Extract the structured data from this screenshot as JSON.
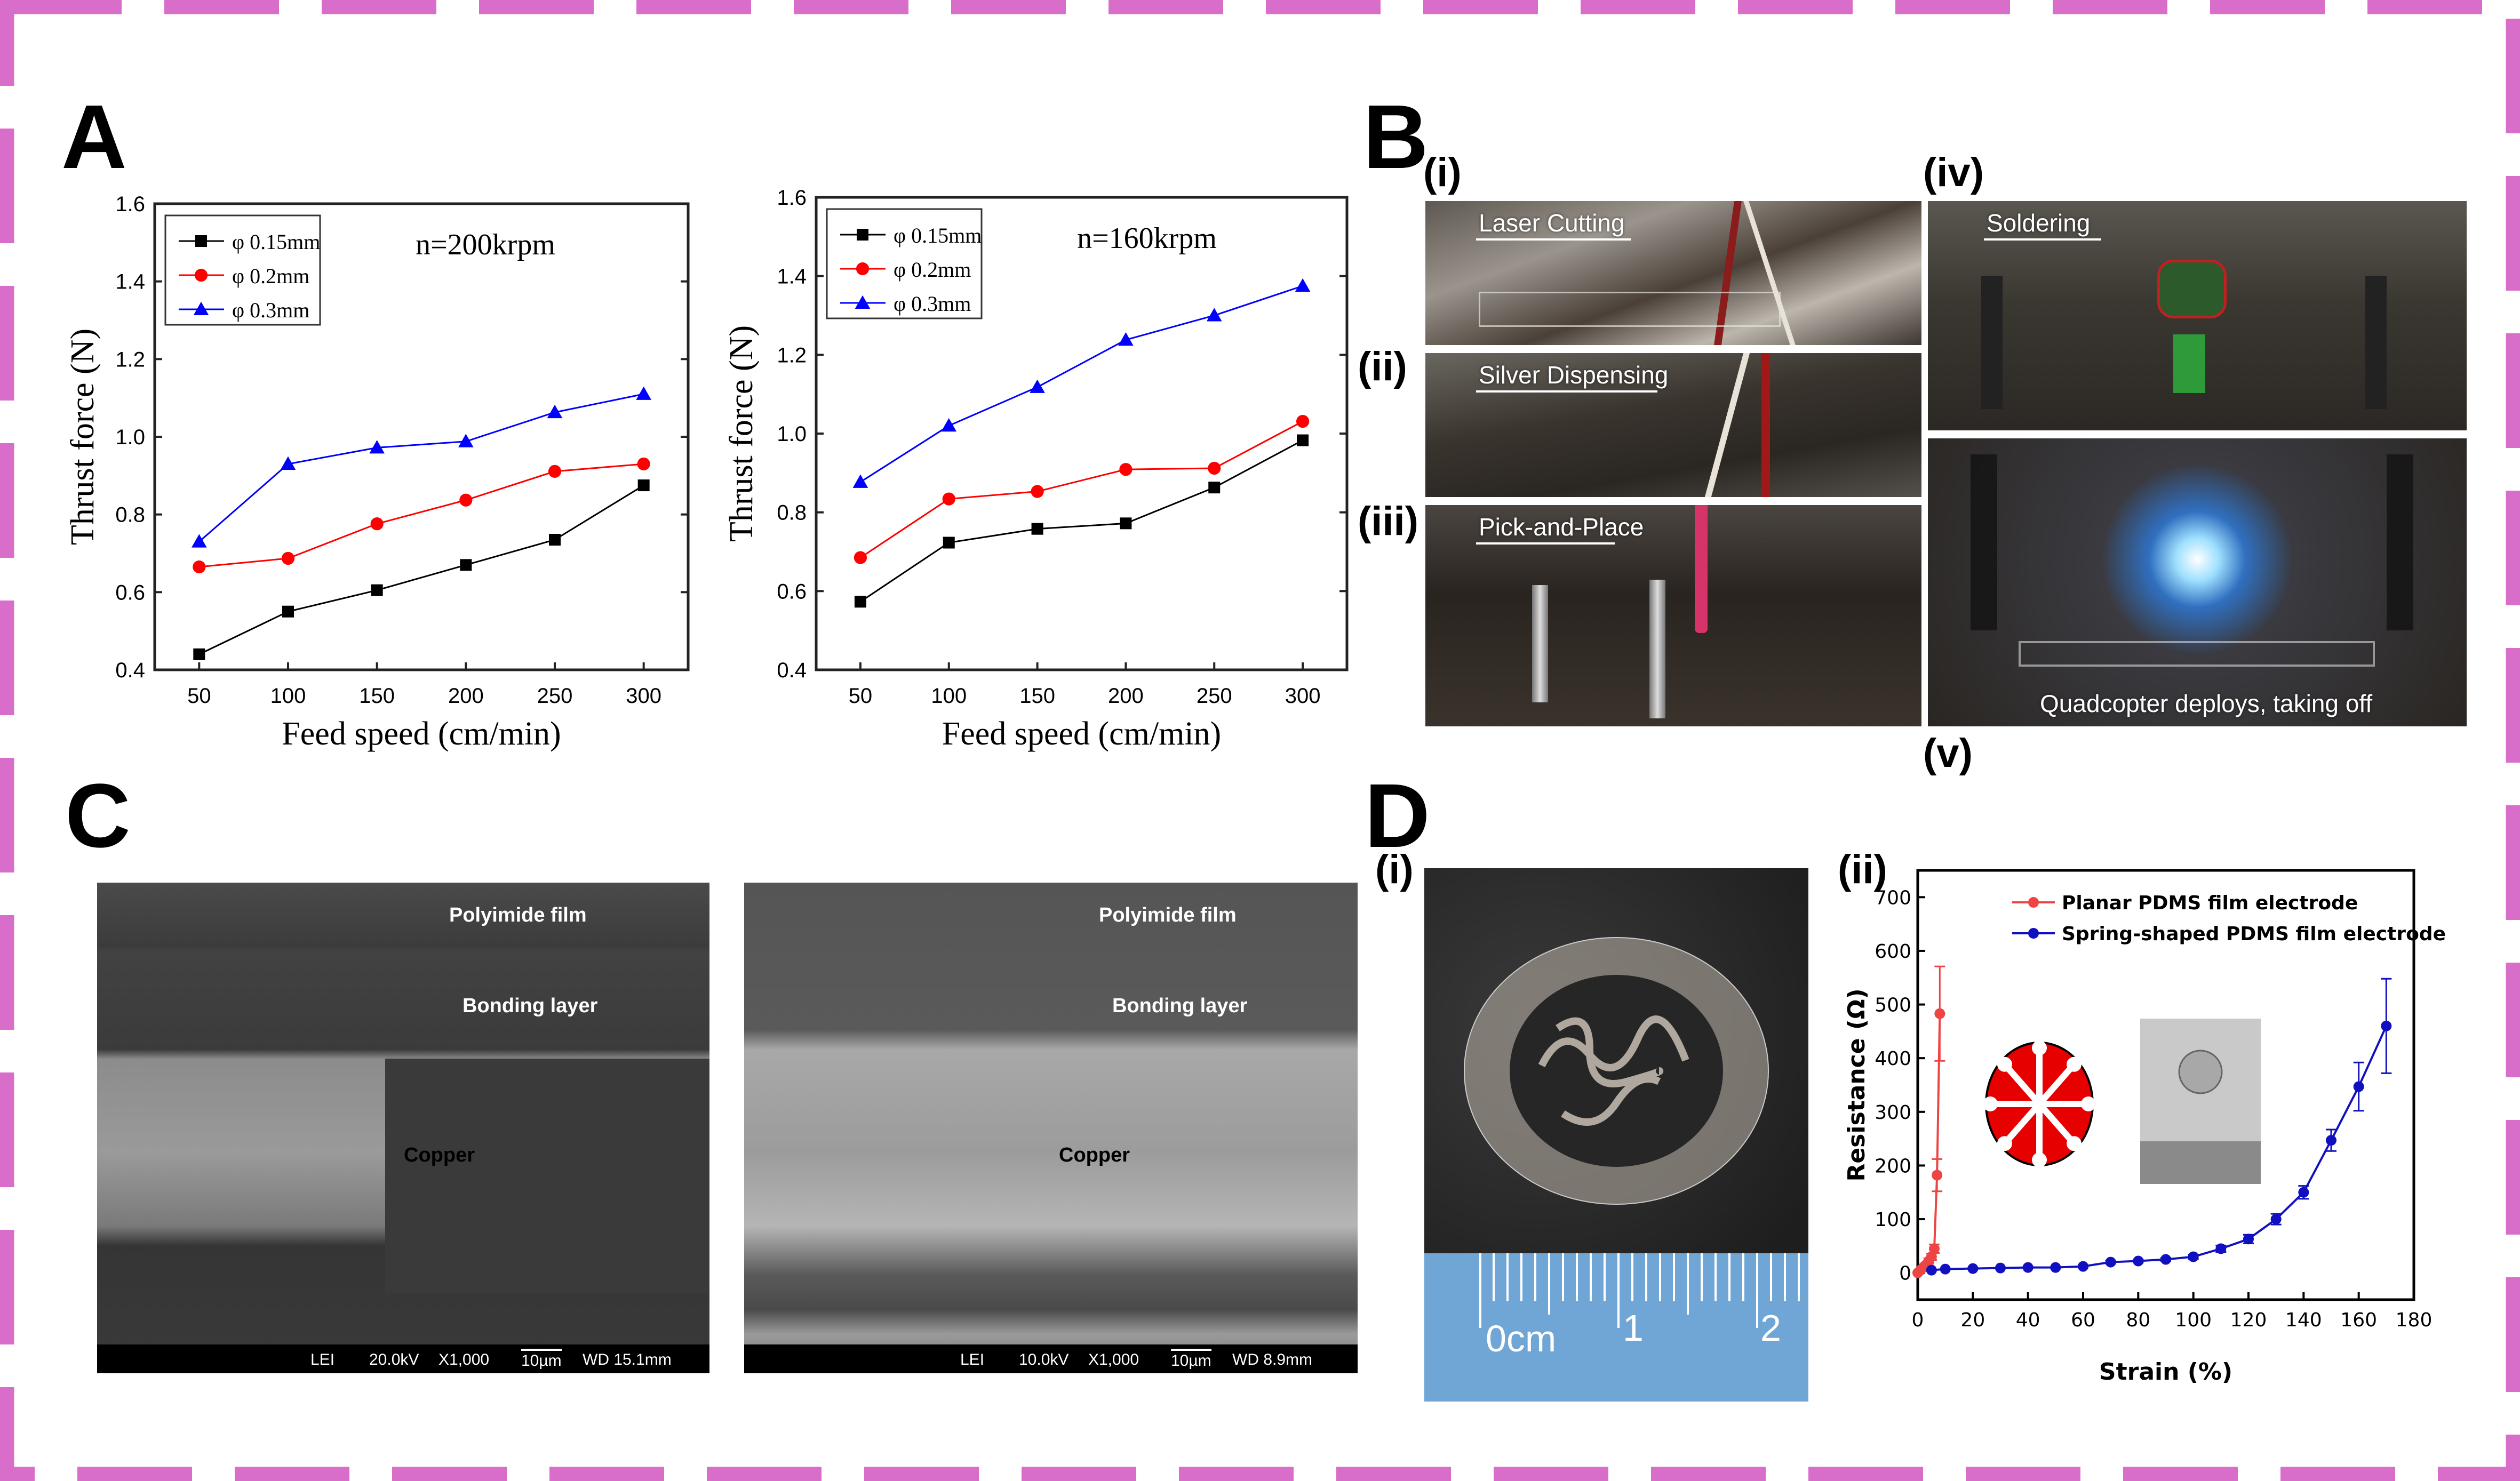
{
  "border": {
    "color": "#d86ec9"
  },
  "panels": {
    "A": {
      "letter": "A"
    },
    "B": {
      "letter": "B",
      "steps": [
        {
          "id": "i",
          "label": "(i)",
          "caption": "Laser Cutting"
        },
        {
          "id": "ii",
          "label": "(ii)",
          "caption": "Silver Dispensing"
        },
        {
          "id": "iii",
          "label": "(iii)",
          "caption": "Pick-and-Place"
        },
        {
          "id": "iv",
          "label": "(iv)",
          "caption": "Soldering"
        },
        {
          "id": "v",
          "label": "(v)",
          "caption": "Quadcopter deploys, taking off"
        }
      ]
    },
    "C": {
      "letter": "C",
      "images": [
        {
          "labels": {
            "top": "Polyimide film",
            "mid": "Bonding layer",
            "core": "Copper"
          },
          "bar": {
            "mode": "LEI",
            "kv": "20.0kV",
            "mag": "X1,000",
            "scale": "10µm",
            "wd": "WD 15.1mm"
          }
        },
        {
          "labels": {
            "top": "Polyimide film",
            "mid": "Bonding layer",
            "core": "Copper"
          },
          "bar": {
            "mode": "LEI",
            "kv": "10.0kV",
            "mag": "X1,000",
            "scale": "10µm",
            "wd": "WD 8.9mm"
          }
        }
      ]
    },
    "D": {
      "letter": "D",
      "sub_i": "(i)",
      "sub_ii": "(ii)",
      "ruler": {
        "labels": [
          "0cm",
          "1",
          "2"
        ]
      }
    }
  },
  "chart_data": [
    {
      "type": "line",
      "title": "n=200krpm",
      "xlabel": "Feed speed (cm/min)",
      "ylabel": "Thrust force (N)",
      "x": [
        50,
        100,
        150,
        200,
        250,
        300
      ],
      "xticks": [
        "50",
        "100",
        "150",
        "200",
        "250",
        "300"
      ],
      "yticks": [
        "0.4",
        "0.6",
        "0.8",
        "1.0",
        "1.2",
        "1.4",
        "1.6"
      ],
      "ylim": [
        0.4,
        1.6
      ],
      "legend_position": "upper-left",
      "series": [
        {
          "name": "φ 0.15mm",
          "color": "#000000",
          "marker": "square",
          "values": [
            0.44,
            0.55,
            0.605,
            0.67,
            0.735,
            0.875
          ]
        },
        {
          "name": "φ 0.2mm",
          "color": "#ff0000",
          "marker": "circle",
          "values": [
            0.665,
            0.687,
            0.776,
            0.837,
            0.911,
            0.93
          ]
        },
        {
          "name": "φ 0.3mm",
          "color": "#0000ff",
          "marker": "triangle",
          "values": [
            0.73,
            0.93,
            0.972,
            0.988,
            1.063,
            1.11
          ]
        }
      ]
    },
    {
      "type": "line",
      "title": "n=160krpm",
      "xlabel": "Feed speed (cm/min)",
      "ylabel": "Thrust force (N)",
      "x": [
        50,
        100,
        150,
        200,
        250,
        300
      ],
      "xticks": [
        "50",
        "100",
        "150",
        "200",
        "250",
        "300"
      ],
      "yticks": [
        "0.4",
        "0.6",
        "0.8",
        "1.0",
        "1.2",
        "1.4",
        "1.6"
      ],
      "ylim": [
        0.4,
        1.6
      ],
      "legend_position": "upper-left",
      "series": [
        {
          "name": "φ 0.15mm",
          "color": "#000000",
          "marker": "square",
          "values": [
            0.573,
            0.723,
            0.758,
            0.772,
            0.863,
            0.983
          ]
        },
        {
          "name": "φ 0.2mm",
          "color": "#ff0000",
          "marker": "circle",
          "values": [
            0.685,
            0.834,
            0.853,
            0.909,
            0.912,
            1.031
          ]
        },
        {
          "name": "φ 0.3mm",
          "color": "#0000ff",
          "marker": "triangle",
          "values": [
            0.877,
            1.02,
            1.118,
            1.238,
            1.3,
            1.375
          ]
        }
      ]
    },
    {
      "type": "line",
      "title": "",
      "xlabel": "Strain  (%)",
      "ylabel": "Resistance (Ω)",
      "xlim": [
        0,
        180
      ],
      "ylim": [
        -50,
        750
      ],
      "xticks": [
        "0",
        "20",
        "40",
        "60",
        "80",
        "100",
        "120",
        "140",
        "160",
        "180"
      ],
      "yticks": [
        "0",
        "100",
        "200",
        "300",
        "400",
        "500",
        "600",
        "700"
      ],
      "legend_position": "upper-center",
      "series": [
        {
          "name": "Planar PDMS film electrode",
          "color": "#ee4444",
          "x": [
            0,
            1,
            2,
            3,
            4,
            5,
            6,
            7,
            8
          ],
          "values": [
            0,
            5,
            10,
            15,
            22,
            30,
            45,
            182,
            483
          ],
          "errors": [
            0,
            2,
            3,
            4,
            5,
            6,
            8,
            30,
            88
          ]
        },
        {
          "name": "Spring-shaped PDMS film electrode",
          "color": "#1010c0",
          "x": [
            5,
            10,
            20,
            30,
            40,
            50,
            60,
            70,
            80,
            90,
            100,
            110,
            120,
            130,
            140,
            150,
            160,
            170
          ],
          "values": [
            5,
            7,
            8,
            9,
            10,
            10,
            12,
            20,
            22,
            25,
            30,
            45,
            63,
            100,
            150,
            247,
            347,
            460
          ],
          "errors": [
            1,
            1,
            1,
            1,
            1,
            1,
            2,
            3,
            3,
            3,
            4,
            6,
            8,
            10,
            12,
            20,
            45,
            88
          ]
        }
      ]
    }
  ]
}
